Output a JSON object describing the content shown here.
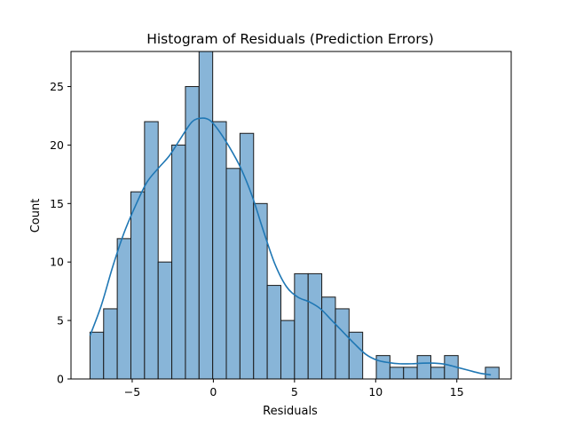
{
  "chart_data": {
    "type": "bar",
    "title": "Histogram of Residuals (Prediction Errors)",
    "xlabel": "Residuals",
    "ylabel": "Count",
    "xlim": [
      -8.77,
      18.35
    ],
    "ylim": [
      0,
      28
    ],
    "xticks": [
      -5,
      0,
      5,
      10,
      15
    ],
    "yticks": [
      0,
      5,
      10,
      15,
      20,
      25
    ],
    "bin_start": -7.6,
    "bin_width": 0.84,
    "counts": [
      4,
      6,
      12,
      16,
      22,
      10,
      20,
      25,
      28,
      22,
      18,
      21,
      15,
      8,
      5,
      9,
      9,
      7,
      6,
      4,
      0,
      2,
      1,
      1,
      2,
      1,
      2,
      0,
      0,
      1
    ],
    "kde": {
      "x": [
        -7.6,
        -6.9,
        -6.2,
        -5.5,
        -4.8,
        -4.1,
        -3.4,
        -2.7,
        -2.0,
        -1.3,
        -0.7,
        -0.2,
        0.3,
        1.0,
        1.7,
        2.4,
        3.1,
        3.8,
        4.5,
        5.2,
        5.9,
        6.6,
        7.3,
        8.0,
        8.7,
        9.4,
        10.1,
        10.8,
        11.5,
        12.2,
        12.9,
        13.6,
        14.3,
        15.0,
        15.7,
        16.4,
        17.1
      ],
      "y": [
        3.7,
        6.3,
        9.6,
        12.5,
        14.8,
        16.8,
        18.0,
        19.1,
        20.6,
        22.0,
        22.3,
        22.1,
        21.3,
        19.8,
        18.0,
        15.6,
        12.6,
        9.8,
        7.9,
        7.0,
        6.6,
        6.0,
        5.0,
        4.0,
        3.0,
        2.1,
        1.6,
        1.4,
        1.3,
        1.3,
        1.35,
        1.35,
        1.25,
        1.0,
        0.75,
        0.5,
        0.35
      ]
    },
    "bar_color": "#88b5d8",
    "bar_edge_color": "#1a1a1a",
    "kde_color": "#1f77b4",
    "grid": false,
    "legend": "none"
  }
}
